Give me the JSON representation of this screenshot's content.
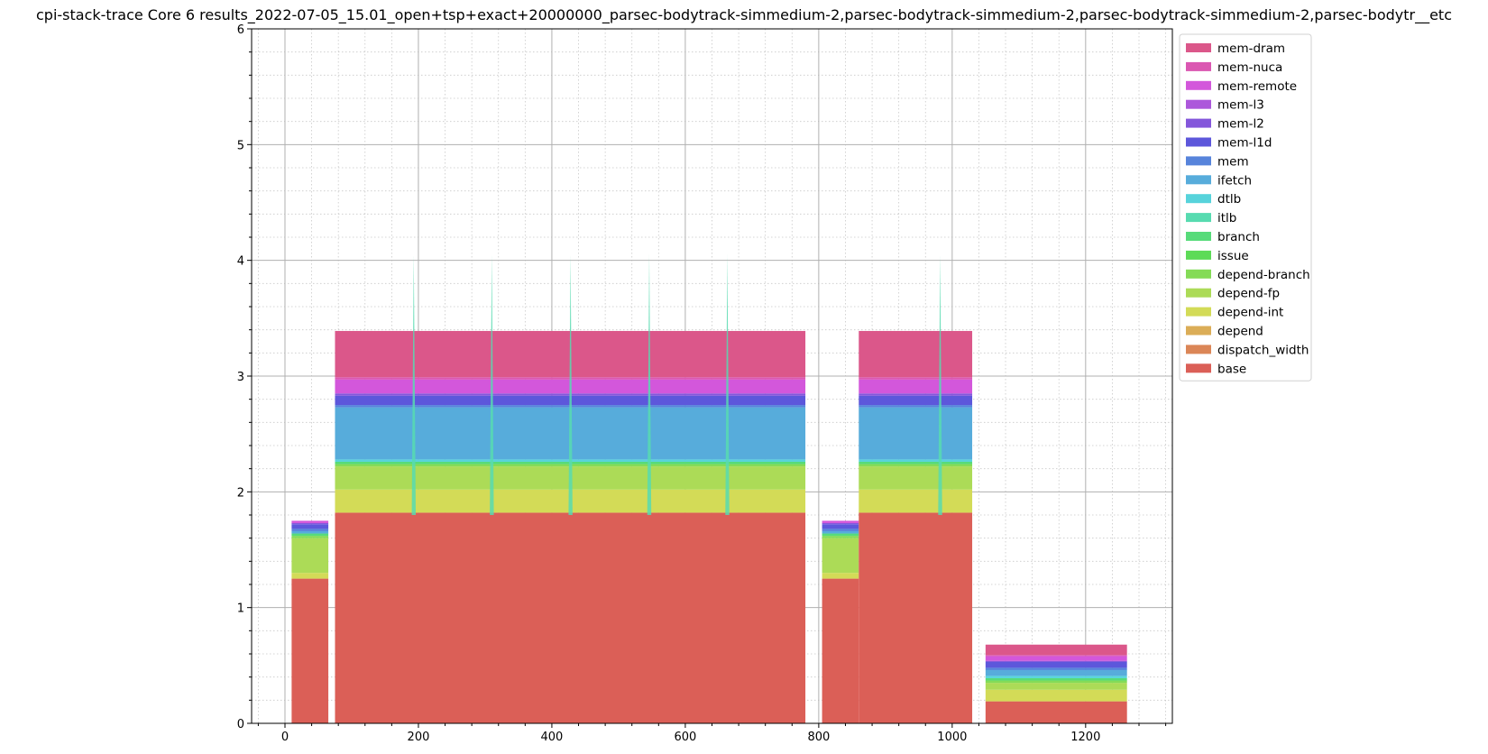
{
  "chart_data": {
    "type": "area",
    "stacked": true,
    "title": "cpi-stack-trace Core 6 results_2022-07-05_15.01_open+tsp+exact+20000000_parsec-bodytrack-simmedium-2,parsec-bodytrack-simmedium-2,parsec-bodytrack-simmedium-2,parsec-bodytr__etc",
    "xlabel": "",
    "ylabel": "",
    "xlim": [
      -50,
      1330
    ],
    "ylim": [
      0,
      6
    ],
    "x_ticks": [
      0,
      200,
      400,
      600,
      800,
      1000,
      1200
    ],
    "y_ticks": [
      0,
      1,
      2,
      3,
      4,
      5,
      6
    ],
    "grid": {
      "major": true,
      "minor": true
    },
    "legend": {
      "placement": "outside right, top"
    },
    "series": [
      {
        "name": "base",
        "color": "#db5f57"
      },
      {
        "name": "dispatch_width",
        "color": "#db8657"
      },
      {
        "name": "depend",
        "color": "#dbad57"
      },
      {
        "name": "depend-int",
        "color": "#d3db57"
      },
      {
        "name": "depend-fp",
        "color": "#acdb57"
      },
      {
        "name": "depend-branch",
        "color": "#84db57"
      },
      {
        "name": "issue",
        "color": "#5ddb57"
      },
      {
        "name": "branch",
        "color": "#57db7a"
      },
      {
        "name": "itlb",
        "color": "#57dbb0"
      },
      {
        "name": "dtlb",
        "color": "#57d3db"
      },
      {
        "name": "ifetch",
        "color": "#57acdb"
      },
      {
        "name": "mem",
        "color": "#5784db"
      },
      {
        "name": "mem-l1d",
        "color": "#5d57db"
      },
      {
        "name": "mem-l2",
        "color": "#8457db"
      },
      {
        "name": "mem-l3",
        "color": "#ac57db"
      },
      {
        "name": "mem-remote",
        "color": "#d357db"
      },
      {
        "name": "mem-nuca",
        "color": "#db57b2"
      },
      {
        "name": "mem-dram",
        "color": "#db578a"
      }
    ],
    "segments": [
      {
        "x_start": 10,
        "x_end": 65,
        "base": 1.25,
        "dispatch_width": 0,
        "depend": 0,
        "depend-int": 0.05,
        "depend-fp": 0.3,
        "depend-branch": 0.02,
        "issue": 0,
        "branch": 0.02,
        "itlb": 0,
        "dtlb": 0,
        "ifetch": 0.02,
        "mem": 0.02,
        "mem-l1d": 0.04,
        "mem-l2": 0.01,
        "mem-l3": 0,
        "mem-remote": 0.02,
        "mem-nuca": 0,
        "mem-dram": 0
      },
      {
        "x_start": 75,
        "x_end": 780,
        "base": 1.82,
        "dispatch_width": 0,
        "depend": 0,
        "depend-int": 0.2,
        "depend-fp": 0.2,
        "depend-branch": 0.02,
        "issue": 0,
        "branch": 0.02,
        "itlb": 0,
        "dtlb": 0.02,
        "ifetch": 0.45,
        "mem": 0.02,
        "mem-l1d": 0.08,
        "mem-l2": 0.02,
        "mem-l3": 0,
        "mem-remote": 0.12,
        "mem-nuca": 0.02,
        "mem-dram": 0.4
      },
      {
        "x_start": 805,
        "x_end": 860,
        "base": 1.25,
        "dispatch_width": 0,
        "depend": 0,
        "depend-int": 0.05,
        "depend-fp": 0.3,
        "depend-branch": 0.02,
        "issue": 0,
        "branch": 0.02,
        "itlb": 0,
        "dtlb": 0,
        "ifetch": 0.02,
        "mem": 0.02,
        "mem-l1d": 0.04,
        "mem-l2": 0.01,
        "mem-l3": 0,
        "mem-remote": 0.02,
        "mem-nuca": 0,
        "mem-dram": 0
      },
      {
        "x_start": 860,
        "x_end": 1030,
        "base": 1.82,
        "dispatch_width": 0,
        "depend": 0,
        "depend-int": 0.2,
        "depend-fp": 0.2,
        "depend-branch": 0.02,
        "issue": 0,
        "branch": 0.02,
        "itlb": 0,
        "dtlb": 0.02,
        "ifetch": 0.45,
        "mem": 0.02,
        "mem-l1d": 0.08,
        "mem-l2": 0.02,
        "mem-l3": 0,
        "mem-remote": 0.12,
        "mem-nuca": 0.02,
        "mem-dram": 0.4
      },
      {
        "x_start": 1050,
        "x_end": 1262,
        "base": 0.19,
        "dispatch_width": 0,
        "depend": 0,
        "depend-int": 0.1,
        "depend-fp": 0.06,
        "depend-branch": 0.02,
        "issue": 0,
        "branch": 0.02,
        "itlb": 0,
        "dtlb": 0.02,
        "ifetch": 0.05,
        "mem": 0.02,
        "mem-l1d": 0.05,
        "mem-l2": 0.01,
        "mem-l3": 0,
        "mem-remote": 0.04,
        "mem-nuca": 0.01,
        "mem-dram": 0.09
      }
    ],
    "spikes": [
      193,
      310,
      428,
      546,
      663,
      982
    ]
  }
}
